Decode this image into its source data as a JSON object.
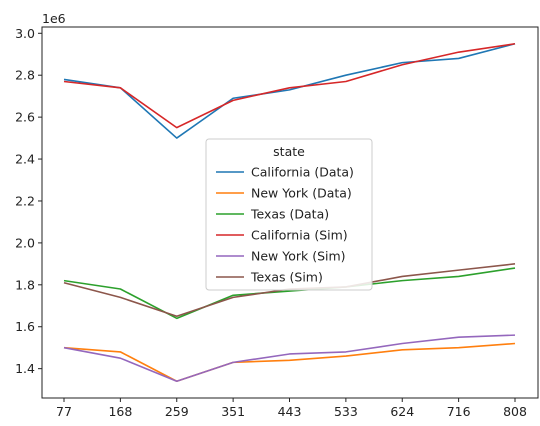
{
  "chart_data": {
    "type": "line",
    "title": "",
    "xlabel": "",
    "ylabel": "",
    "y_offset_label": "1e6",
    "categories": [
      "77",
      "168",
      "259",
      "351",
      "443",
      "533",
      "624",
      "716",
      "808"
    ],
    "ylim": [
      1.26,
      3.03
    ],
    "y_ticks": [
      1.4,
      1.6,
      1.8,
      2.0,
      2.2,
      2.4,
      2.6,
      2.8,
      3.0
    ],
    "y_tick_labels": [
      "1.4",
      "1.6",
      "1.8",
      "2.0",
      "2.2",
      "2.4",
      "2.6",
      "2.8",
      "3.0"
    ],
    "grid": false,
    "legend": {
      "title": "state",
      "placement": "center"
    },
    "series": [
      {
        "name": "California (Data)",
        "color": "#1f77b4",
        "values": [
          2.78,
          2.74,
          2.5,
          2.69,
          2.73,
          2.8,
          2.86,
          2.88,
          2.95
        ]
      },
      {
        "name": "New York (Data)",
        "color": "#ff7f0e",
        "values": [
          1.5,
          1.48,
          1.34,
          1.43,
          1.44,
          1.46,
          1.49,
          1.5,
          1.52
        ]
      },
      {
        "name": "Texas (Data)",
        "color": "#2ca02c",
        "values": [
          1.82,
          1.78,
          1.64,
          1.75,
          1.77,
          1.79,
          1.82,
          1.84,
          1.88
        ]
      },
      {
        "name": "California (Sim)",
        "color": "#d62728",
        "values": [
          2.77,
          2.74,
          2.55,
          2.68,
          2.74,
          2.77,
          2.85,
          2.91,
          2.95
        ]
      },
      {
        "name": "New York (Sim)",
        "color": "#9467bd",
        "values": [
          1.5,
          1.45,
          1.34,
          1.43,
          1.47,
          1.48,
          1.52,
          1.55,
          1.56
        ]
      },
      {
        "name": "Texas (Sim)",
        "color": "#8c564b",
        "values": [
          1.81,
          1.74,
          1.65,
          1.74,
          1.78,
          1.79,
          1.84,
          1.87,
          1.9
        ]
      }
    ]
  }
}
